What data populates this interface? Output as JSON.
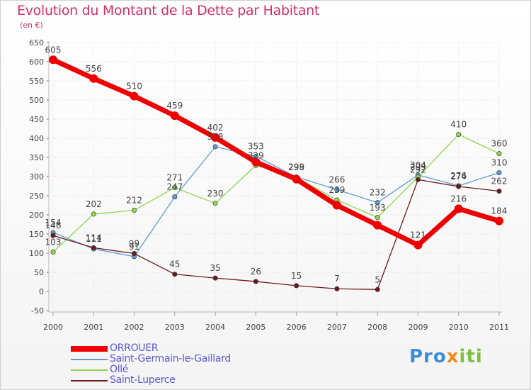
{
  "title": "Evolution du Montant de la Dette par Habitant",
  "subtitle": "(en €)",
  "logo": {
    "text": "Proxiti",
    "colors": [
      "#3b8fd8",
      "#f08a1c",
      "#7bbf3a"
    ]
  },
  "chart_data": {
    "type": "line",
    "x": [
      "2000",
      "2001",
      "2002",
      "2003",
      "2004",
      "2005",
      "2006",
      "2007",
      "2008",
      "2009",
      "2010",
      "2011"
    ],
    "ylim": [
      -50,
      650
    ],
    "yticks": [
      -50,
      0,
      50,
      100,
      150,
      200,
      250,
      300,
      350,
      400,
      450,
      500,
      550,
      600,
      650
    ],
    "grid": true,
    "legend_position": "bottom-left",
    "series": [
      {
        "name": "ORROUER",
        "color": "#ee0000",
        "values": [
          605,
          556,
          510,
          459,
          402,
          338,
          293,
          225,
          173,
          121,
          216,
          184
        ],
        "labels": [
          "605",
          "556",
          "510",
          "459",
          "402",
          "",
          "",
          "",
          "",
          "121",
          "216",
          "184"
        ]
      },
      {
        "name": "Saint-Germain-le-Gaillard",
        "color": "#5f9ad6",
        "values": [
          154,
          111,
          91,
          247,
          378,
          353,
          299,
          266,
          232,
          304,
          276,
          310
        ],
        "labels": [
          "154",
          "111",
          "91",
          "247",
          "378",
          "353",
          "299",
          "266",
          "232",
          "304",
          "276",
          "310"
        ]
      },
      {
        "name": "Ollé",
        "color": "#8fd64e",
        "values": [
          103,
          202,
          212,
          271,
          230,
          329,
          298,
          239,
          193,
          299,
          410,
          360
        ],
        "labels": [
          "103",
          "202",
          "212",
          "271",
          "230",
          "329",
          "298",
          "239",
          "193",
          "299",
          "410",
          "360"
        ]
      },
      {
        "name": "Saint-Luperce",
        "color": "#6b1a1a",
        "values": [
          146,
          114,
          99,
          45,
          35,
          26,
          15,
          7,
          5,
          292,
          274,
          262
        ],
        "labels": [
          "146",
          "114",
          "99",
          "45",
          "35",
          "26",
          "15",
          "7",
          "5",
          "292",
          "274",
          "262"
        ]
      }
    ]
  }
}
